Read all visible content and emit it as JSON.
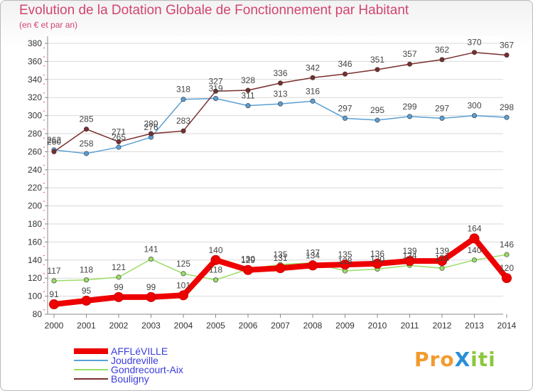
{
  "header": {
    "title": "Evolution de la Dotation Globale de Fonctionnement par Habitant",
    "subtitle": "(en € et par an)"
  },
  "logo": {
    "text": "ProXiti",
    "parts": [
      "Pro",
      "X",
      "iti"
    ],
    "colors": [
      "#f39a2e",
      "#2a8fd8",
      "#8cc63f"
    ]
  },
  "chart_data": {
    "type": "line",
    "title": "Evolution de la Dotation Globale de Fonctionnement par Habitant",
    "subtitle": "(en € et par an)",
    "xlabel": "",
    "ylabel": "",
    "categories": [
      "2000",
      "2001",
      "2002",
      "2003",
      "2004",
      "2005",
      "2006",
      "2007",
      "2008",
      "2009",
      "2010",
      "2011",
      "2012",
      "2013",
      "2014"
    ],
    "ylim": [
      80,
      380
    ],
    "yticks": [
      80,
      100,
      120,
      140,
      160,
      180,
      200,
      220,
      240,
      260,
      280,
      300,
      320,
      340,
      360,
      380
    ],
    "grid": "horizontal",
    "legend_position": "bottom-left",
    "series": [
      {
        "name": "AFFLéVILLE",
        "color": "#ee0000",
        "values": [
          91,
          95,
          99,
          99,
          101,
          140,
          129,
          131,
          134,
          135,
          136,
          139,
          139,
          164,
          120
        ]
      },
      {
        "name": "Joudreville",
        "color": "#5a9fd4",
        "values": [
          262,
          258,
          265,
          276,
          318,
          319,
          311,
          313,
          316,
          297,
          295,
          299,
          297,
          300,
          298
        ]
      },
      {
        "name": "Gondrecourt-Aix",
        "color": "#99dd66",
        "values": [
          117,
          118,
          121,
          141,
          125,
          118,
          130,
          135,
          137,
          128,
          130,
          134,
          131,
          140,
          146
        ]
      },
      {
        "name": "Bouligny",
        "color": "#7a2e2e",
        "values": [
          260,
          285,
          271,
          280,
          283,
          327,
          328,
          336,
          342,
          346,
          351,
          357,
          362,
          370,
          367
        ]
      }
    ]
  }
}
